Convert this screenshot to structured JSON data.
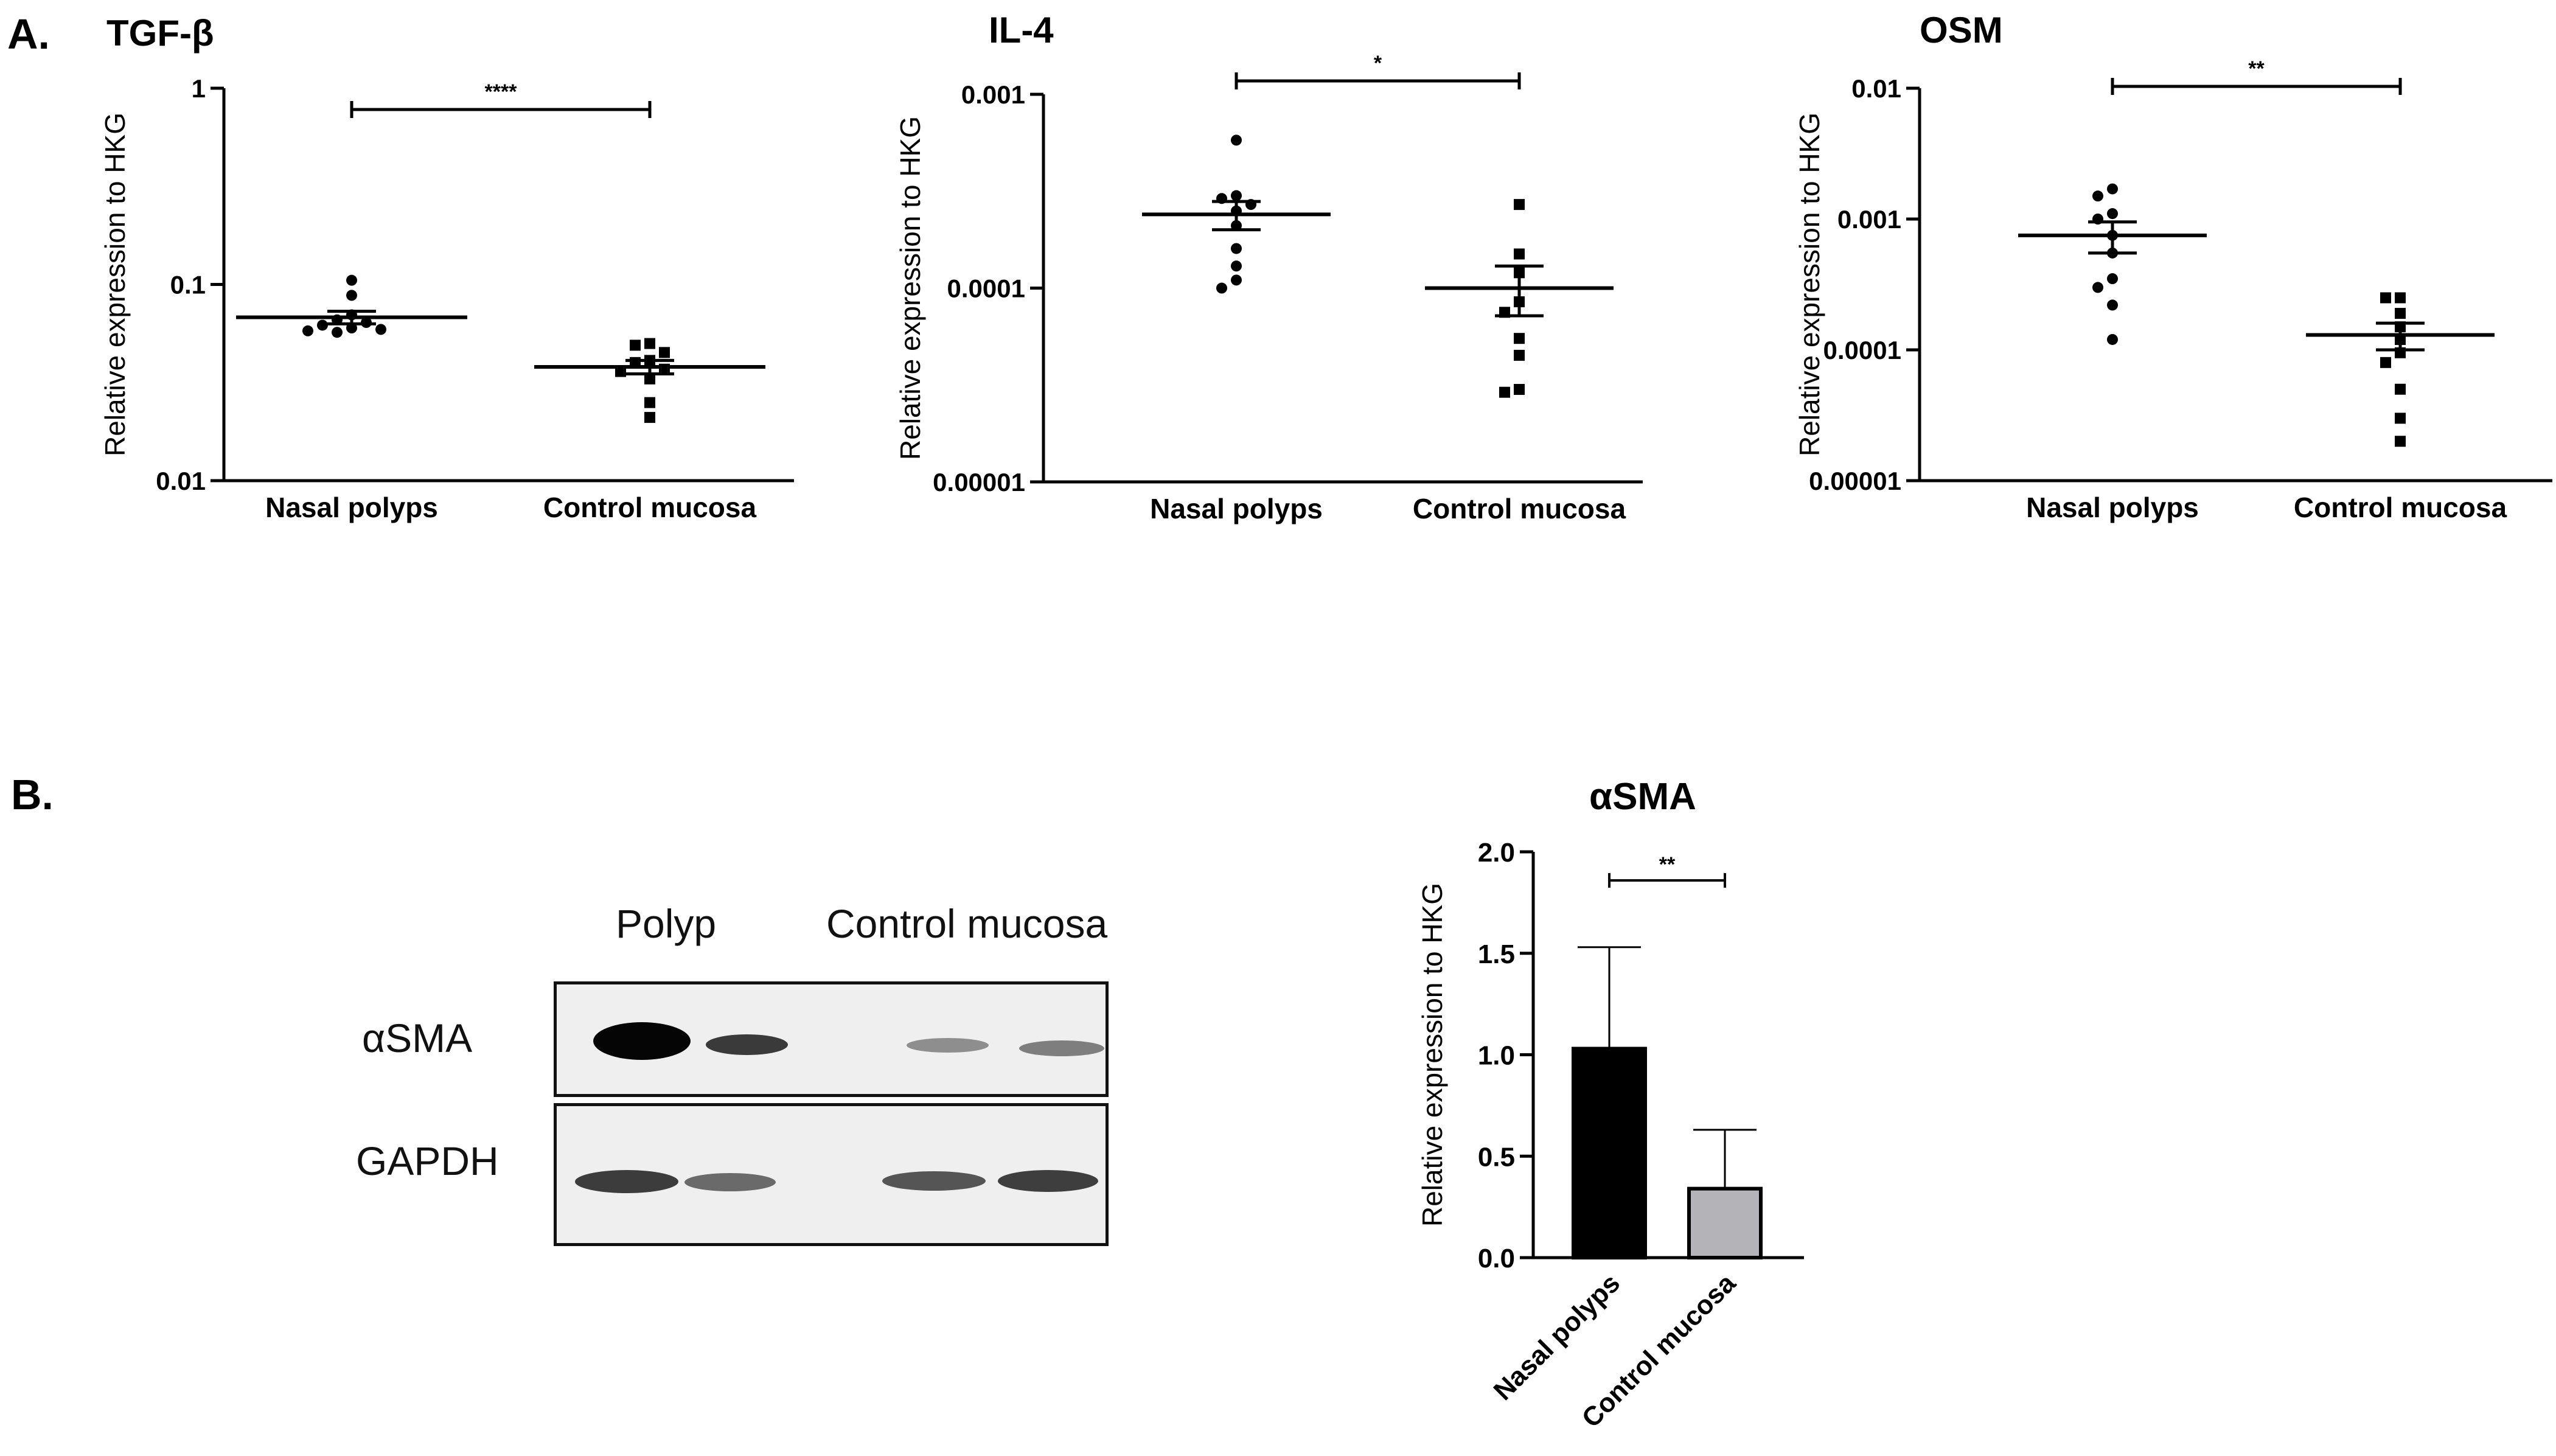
{
  "panel_a_letter": "A.",
  "panel_b_letter": "B.",
  "chart_data": [
    {
      "type": "scatter",
      "title": "TGF-β",
      "ylabel": "Relative expression to HKG",
      "yscale": "log",
      "ylim": [
        0.01,
        1
      ],
      "yticks": [
        "1",
        "0.1",
        "0.01"
      ],
      "categories": [
        "Nasal polyps",
        "Control mucosa"
      ],
      "significance": "****",
      "series": [
        {
          "points": [
            0.105,
            0.088,
            0.07,
            0.066,
            0.064,
            0.062,
            0.06,
            0.059,
            0.058,
            0.057
          ],
          "mean": 0.068,
          "sem": [
            0.063,
            0.073
          ]
        },
        {
          "points": [
            0.05,
            0.049,
            0.045,
            0.041,
            0.04,
            0.037,
            0.036,
            0.033,
            0.025,
            0.021
          ],
          "mean": 0.038,
          "sem": [
            0.035,
            0.041
          ]
        }
      ]
    },
    {
      "type": "scatter",
      "title": "IL-4",
      "ylabel": "Relative expression to HKG",
      "yscale": "log",
      "ylim": [
        1e-05,
        0.001
      ],
      "yticks": [
        "0.001",
        "0.0001",
        "0.00001"
      ],
      "categories": [
        "Nasal polyps",
        "Control mucosa"
      ],
      "significance": "*",
      "series": [
        {
          "points": [
            0.00058,
            0.0003,
            0.00029,
            0.00027,
            0.00025,
            0.00021,
            0.00016,
            0.00013,
            0.00011,
            0.0001
          ],
          "mean": 0.00024,
          "sem": [
            0.0002,
            0.00028
          ]
        },
        {
          "points": [
            0.00027,
            0.00015,
            0.00012,
            8.5e-05,
            7.5e-05,
            5.5e-05,
            4.5e-05,
            3e-05,
            2.9e-05
          ],
          "mean": 0.0001,
          "sem": [
            7.2e-05,
            0.00013
          ]
        }
      ]
    },
    {
      "type": "scatter",
      "title": "OSM",
      "ylabel": "Relative expression to HKG",
      "yscale": "log",
      "ylim": [
        1e-05,
        0.01
      ],
      "yticks": [
        "0.01",
        "0.001",
        "0.0001",
        "0.00001"
      ],
      "categories": [
        "Nasal polyps",
        "Control mucosa"
      ],
      "significance": "**",
      "series": [
        {
          "points": [
            0.0017,
            0.0015,
            0.0011,
            0.001,
            0.00075,
            0.00055,
            0.00035,
            0.0003,
            0.00022,
            0.00012
          ],
          "mean": 0.00075,
          "sem": [
            0.00055,
            0.00095
          ]
        },
        {
          "points": [
            0.00025,
            0.00025,
            0.00019,
            0.00015,
            0.00012,
            9.5e-05,
            8e-05,
            5e-05,
            3e-05,
            2e-05
          ],
          "mean": 0.00013,
          "sem": [
            0.0001,
            0.00016
          ]
        }
      ]
    },
    {
      "type": "bar",
      "title": "αSMA",
      "ylabel": "Relative expression to HKG",
      "ylim": [
        0,
        2.0
      ],
      "yticks": [
        "0.0",
        "0.5",
        "1.0",
        "1.5",
        "2.0"
      ],
      "categories": [
        "Nasal polyps",
        "Control mucosa"
      ],
      "values": [
        1.03,
        0.34
      ],
      "errors": [
        0.5,
        0.29
      ],
      "colors": [
        "#000000",
        "#b4b4b8"
      ],
      "significance": "**"
    }
  ],
  "blot": {
    "columns": [
      "Polyp",
      "Control mucosa"
    ],
    "rows": [
      "αSMA",
      "GAPDH"
    ]
  }
}
